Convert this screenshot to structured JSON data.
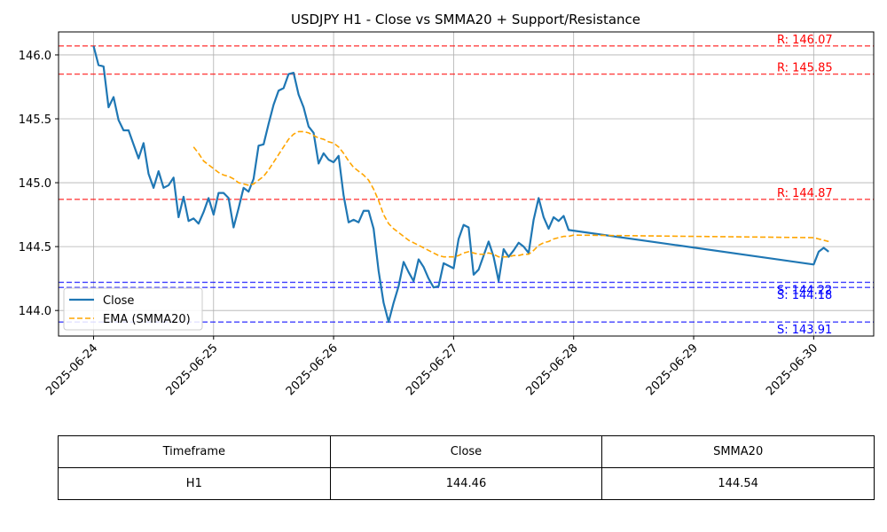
{
  "chart_data": {
    "type": "line",
    "title": "USDJPY H1 - Close vs SMMA20 + Support/Resistance",
    "xlabel": "",
    "ylabel": "",
    "x_range": [
      "2025-06-23 17:00",
      "2025-06-30 12:00"
    ],
    "ylim": [
      143.8,
      146.18
    ],
    "grid": true,
    "legend_position": "lower-left",
    "x_ticks": [
      "2025-06-24",
      "2025-06-25",
      "2025-06-26",
      "2025-06-27",
      "2025-06-28",
      "2025-06-29",
      "2025-06-30"
    ],
    "y_ticks": [
      144.0,
      144.5,
      145.0,
      145.5,
      146.0
    ],
    "series": [
      {
        "name": "Close",
        "color": "#1f77b4",
        "style": "solid",
        "points": [
          [
            "2025-06-24 00:00",
            146.07
          ],
          [
            "2025-06-24 01:00",
            145.92
          ],
          [
            "2025-06-24 02:00",
            145.91
          ],
          [
            "2025-06-24 03:00",
            145.59
          ],
          [
            "2025-06-24 04:00",
            145.67
          ],
          [
            "2025-06-24 05:00",
            145.49
          ],
          [
            "2025-06-24 06:00",
            145.41
          ],
          [
            "2025-06-24 07:00",
            145.41
          ],
          [
            "2025-06-24 08:00",
            145.3
          ],
          [
            "2025-06-24 09:00",
            145.19
          ],
          [
            "2025-06-24 10:00",
            145.31
          ],
          [
            "2025-06-24 11:00",
            145.07
          ],
          [
            "2025-06-24 12:00",
            144.96
          ],
          [
            "2025-06-24 13:00",
            145.09
          ],
          [
            "2025-06-24 14:00",
            144.96
          ],
          [
            "2025-06-24 15:00",
            144.98
          ],
          [
            "2025-06-24 16:00",
            145.04
          ],
          [
            "2025-06-24 17:00",
            144.73
          ],
          [
            "2025-06-24 18:00",
            144.89
          ],
          [
            "2025-06-24 19:00",
            144.7
          ],
          [
            "2025-06-24 20:00",
            144.72
          ],
          [
            "2025-06-24 21:00",
            144.68
          ],
          [
            "2025-06-24 22:00",
            144.77
          ],
          [
            "2025-06-24 23:00",
            144.88
          ],
          [
            "2025-06-25 00:00",
            144.75
          ],
          [
            "2025-06-25 01:00",
            144.92
          ],
          [
            "2025-06-25 02:00",
            144.92
          ],
          [
            "2025-06-25 03:00",
            144.88
          ],
          [
            "2025-06-25 04:00",
            144.65
          ],
          [
            "2025-06-25 05:00",
            144.8
          ],
          [
            "2025-06-25 06:00",
            144.96
          ],
          [
            "2025-06-25 07:00",
            144.93
          ],
          [
            "2025-06-25 08:00",
            145.03
          ],
          [
            "2025-06-25 09:00",
            145.29
          ],
          [
            "2025-06-25 10:00",
            145.3
          ],
          [
            "2025-06-25 11:00",
            145.46
          ],
          [
            "2025-06-25 12:00",
            145.61
          ],
          [
            "2025-06-25 13:00",
            145.72
          ],
          [
            "2025-06-25 14:00",
            145.74
          ],
          [
            "2025-06-25 15:00",
            145.85
          ],
          [
            "2025-06-25 16:00",
            145.86
          ],
          [
            "2025-06-25 17:00",
            145.69
          ],
          [
            "2025-06-25 18:00",
            145.59
          ],
          [
            "2025-06-25 19:00",
            145.44
          ],
          [
            "2025-06-25 20:00",
            145.39
          ],
          [
            "2025-06-25 21:00",
            145.15
          ],
          [
            "2025-06-25 22:00",
            145.23
          ],
          [
            "2025-06-25 23:00",
            145.18
          ],
          [
            "2025-06-26 00:00",
            145.16
          ],
          [
            "2025-06-26 01:00",
            145.21
          ],
          [
            "2025-06-26 02:00",
            144.9
          ],
          [
            "2025-06-26 03:00",
            144.69
          ],
          [
            "2025-06-26 04:00",
            144.71
          ],
          [
            "2025-06-26 05:00",
            144.69
          ],
          [
            "2025-06-26 06:00",
            144.78
          ],
          [
            "2025-06-26 07:00",
            144.78
          ],
          [
            "2025-06-26 08:00",
            144.64
          ],
          [
            "2025-06-26 09:00",
            144.31
          ],
          [
            "2025-06-26 10:00",
            144.06
          ],
          [
            "2025-06-26 11:00",
            143.91
          ],
          [
            "2025-06-26 12:00",
            144.06
          ],
          [
            "2025-06-26 13:00",
            144.19
          ],
          [
            "2025-06-26 14:00",
            144.38
          ],
          [
            "2025-06-26 15:00",
            144.3
          ],
          [
            "2025-06-26 16:00",
            144.23
          ],
          [
            "2025-06-26 17:00",
            144.4
          ],
          [
            "2025-06-26 18:00",
            144.34
          ],
          [
            "2025-06-26 19:00",
            144.25
          ],
          [
            "2025-06-26 20:00",
            144.18
          ],
          [
            "2025-06-26 21:00",
            144.19
          ],
          [
            "2025-06-26 22:00",
            144.37
          ],
          [
            "2025-06-26 23:00",
            144.35
          ],
          [
            "2025-06-27 00:00",
            144.33
          ],
          [
            "2025-06-27 01:00",
            144.56
          ],
          [
            "2025-06-27 02:00",
            144.67
          ],
          [
            "2025-06-27 03:00",
            144.65
          ],
          [
            "2025-06-27 04:00",
            144.28
          ],
          [
            "2025-06-27 05:00",
            144.32
          ],
          [
            "2025-06-27 06:00",
            144.43
          ],
          [
            "2025-06-27 07:00",
            144.54
          ],
          [
            "2025-06-27 08:00",
            144.42
          ],
          [
            "2025-06-27 09:00",
            144.23
          ],
          [
            "2025-06-27 10:00",
            144.48
          ],
          [
            "2025-06-27 11:00",
            144.42
          ],
          [
            "2025-06-27 12:00",
            144.47
          ],
          [
            "2025-06-27 13:00",
            144.53
          ],
          [
            "2025-06-27 14:00",
            144.5
          ],
          [
            "2025-06-27 15:00",
            144.45
          ],
          [
            "2025-06-27 16:00",
            144.71
          ],
          [
            "2025-06-27 17:00",
            144.88
          ],
          [
            "2025-06-27 18:00",
            144.73
          ],
          [
            "2025-06-27 19:00",
            144.64
          ],
          [
            "2025-06-27 20:00",
            144.73
          ],
          [
            "2025-06-27 21:00",
            144.7
          ],
          [
            "2025-06-27 22:00",
            144.74
          ],
          [
            "2025-06-27 23:00",
            144.63
          ],
          [
            "2025-06-30 00:00",
            144.36
          ],
          [
            "2025-06-30 01:00",
            144.46
          ],
          [
            "2025-06-30 02:00",
            144.49
          ],
          [
            "2025-06-30 03:00",
            144.46
          ]
        ]
      },
      {
        "name": "EMA (SMMA20)",
        "color": "#ffa500",
        "style": "dashed",
        "points": [
          [
            "2025-06-24 20:00",
            145.28
          ],
          [
            "2025-06-24 21:00",
            145.23
          ],
          [
            "2025-06-24 22:00",
            145.17
          ],
          [
            "2025-06-24 23:00",
            145.14
          ],
          [
            "2025-06-25 00:00",
            145.11
          ],
          [
            "2025-06-25 01:00",
            145.08
          ],
          [
            "2025-06-25 02:00",
            145.06
          ],
          [
            "2025-06-25 03:00",
            145.05
          ],
          [
            "2025-06-25 04:00",
            145.03
          ],
          [
            "2025-06-25 05:00",
            145.0
          ],
          [
            "2025-06-25 06:00",
            144.99
          ],
          [
            "2025-06-25 07:00",
            144.98
          ],
          [
            "2025-06-25 08:00",
            144.99
          ],
          [
            "2025-06-25 09:00",
            145.02
          ],
          [
            "2025-06-25 10:00",
            145.05
          ],
          [
            "2025-06-25 11:00",
            145.1
          ],
          [
            "2025-06-25 12:00",
            145.16
          ],
          [
            "2025-06-25 13:00",
            145.22
          ],
          [
            "2025-06-25 14:00",
            145.28
          ],
          [
            "2025-06-25 15:00",
            145.34
          ],
          [
            "2025-06-25 16:00",
            145.38
          ],
          [
            "2025-06-25 17:00",
            145.4
          ],
          [
            "2025-06-25 18:00",
            145.4
          ],
          [
            "2025-06-25 19:00",
            145.39
          ],
          [
            "2025-06-25 20:00",
            145.37
          ],
          [
            "2025-06-25 21:00",
            145.35
          ],
          [
            "2025-06-25 22:00",
            145.34
          ],
          [
            "2025-06-25 23:00",
            145.32
          ],
          [
            "2025-06-26 00:00",
            145.31
          ],
          [
            "2025-06-26 01:00",
            145.28
          ],
          [
            "2025-06-26 02:00",
            145.23
          ],
          [
            "2025-06-26 03:00",
            145.17
          ],
          [
            "2025-06-26 04:00",
            145.12
          ],
          [
            "2025-06-26 05:00",
            145.09
          ],
          [
            "2025-06-26 06:00",
            145.06
          ],
          [
            "2025-06-26 07:00",
            145.02
          ],
          [
            "2025-06-26 08:00",
            144.95
          ],
          [
            "2025-06-26 09:00",
            144.86
          ],
          [
            "2025-06-26 10:00",
            144.75
          ],
          [
            "2025-06-26 11:00",
            144.68
          ],
          [
            "2025-06-26 12:00",
            144.64
          ],
          [
            "2025-06-26 13:00",
            144.61
          ],
          [
            "2025-06-26 14:00",
            144.58
          ],
          [
            "2025-06-26 15:00",
            144.55
          ],
          [
            "2025-06-26 16:00",
            144.53
          ],
          [
            "2025-06-26 17:00",
            144.51
          ],
          [
            "2025-06-26 18:00",
            144.49
          ],
          [
            "2025-06-26 19:00",
            144.47
          ],
          [
            "2025-06-26 20:00",
            144.45
          ],
          [
            "2025-06-26 21:00",
            144.43
          ],
          [
            "2025-06-26 22:00",
            144.42
          ],
          [
            "2025-06-26 23:00",
            144.42
          ],
          [
            "2025-06-27 00:00",
            144.42
          ],
          [
            "2025-06-27 01:00",
            144.43
          ],
          [
            "2025-06-27 02:00",
            144.45
          ],
          [
            "2025-06-27 03:00",
            144.46
          ],
          [
            "2025-06-27 04:00",
            144.45
          ],
          [
            "2025-06-27 05:00",
            144.44
          ],
          [
            "2025-06-27 06:00",
            144.44
          ],
          [
            "2025-06-27 07:00",
            144.45
          ],
          [
            "2025-06-27 08:00",
            144.44
          ],
          [
            "2025-06-27 09:00",
            144.42
          ],
          [
            "2025-06-27 10:00",
            144.42
          ],
          [
            "2025-06-27 11:00",
            144.42
          ],
          [
            "2025-06-27 12:00",
            144.43
          ],
          [
            "2025-06-27 13:00",
            144.43
          ],
          [
            "2025-06-27 14:00",
            144.44
          ],
          [
            "2025-06-27 15:00",
            144.44
          ],
          [
            "2025-06-27 16:00",
            144.47
          ],
          [
            "2025-06-27 17:00",
            144.51
          ],
          [
            "2025-06-27 18:00",
            144.53
          ],
          [
            "2025-06-27 19:00",
            144.54
          ],
          [
            "2025-06-27 20:00",
            144.56
          ],
          [
            "2025-06-27 21:00",
            144.57
          ],
          [
            "2025-06-27 22:00",
            144.58
          ],
          [
            "2025-06-27 23:00",
            144.58
          ],
          [
            "2025-06-28 00:00",
            144.59
          ],
          [
            "2025-06-30 00:00",
            144.57
          ],
          [
            "2025-06-30 01:00",
            144.56
          ],
          [
            "2025-06-30 02:00",
            144.55
          ],
          [
            "2025-06-30 03:00",
            144.54
          ]
        ]
      }
    ],
    "levels": [
      {
        "kind": "resistance",
        "value": 146.07,
        "label": "R: 146.07",
        "color": "#ff0000"
      },
      {
        "kind": "resistance",
        "value": 145.85,
        "label": "R: 145.85",
        "color": "#ff0000"
      },
      {
        "kind": "resistance",
        "value": 144.87,
        "label": "R: 144.87",
        "color": "#ff0000"
      },
      {
        "kind": "support",
        "value": 144.22,
        "label": "S: 144.22",
        "color": "#0000ff"
      },
      {
        "kind": "support",
        "value": 144.18,
        "label": "S: 144.18",
        "color": "#0000ff"
      },
      {
        "kind": "support",
        "value": 143.91,
        "label": "S: 143.91",
        "color": "#0000ff"
      }
    ]
  },
  "table": {
    "headers": [
      "Timeframe",
      "Close",
      "SMMA20"
    ],
    "row": [
      "H1",
      "144.46",
      "144.54"
    ]
  }
}
